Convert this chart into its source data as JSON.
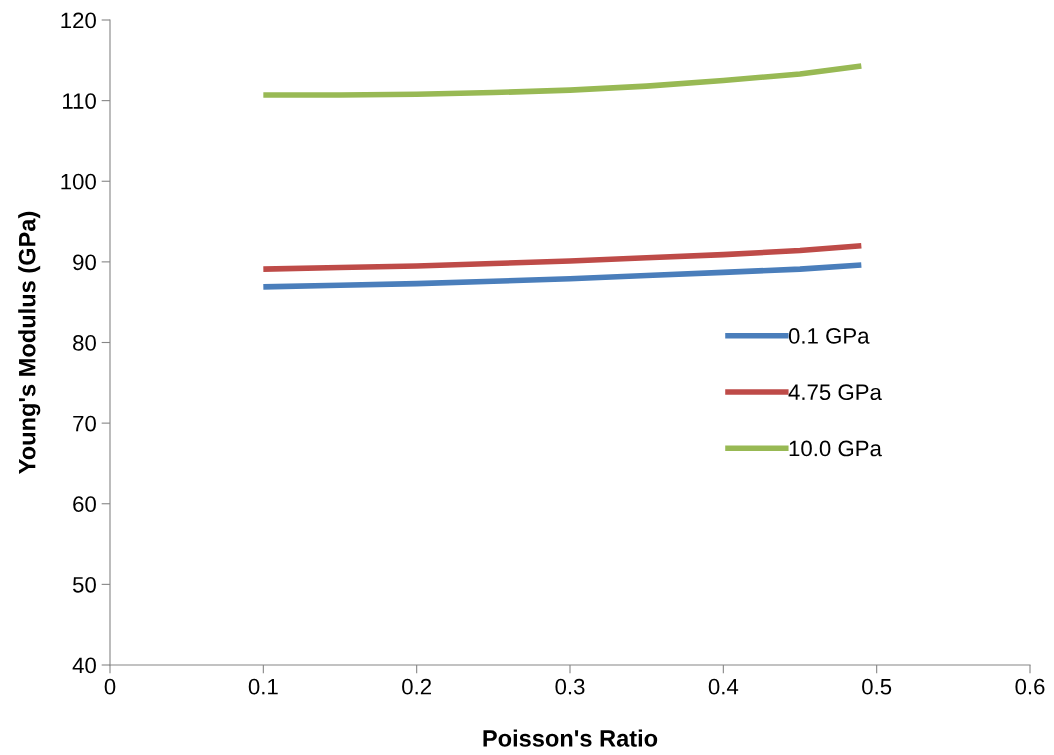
{
  "chart_data": {
    "type": "line",
    "xlabel": "Poisson's Ratio",
    "ylabel": "Young's Modulus (GPa)",
    "x": [
      0.1,
      0.15,
      0.2,
      0.25,
      0.3,
      0.35,
      0.4,
      0.45,
      0.49
    ],
    "series": [
      {
        "name": "0.1 GPa",
        "color": "#4a7ebb",
        "values": [
          86.9,
          87.1,
          87.3,
          87.6,
          87.9,
          88.3,
          88.7,
          89.1,
          89.6
        ]
      },
      {
        "name": "4.75 GPa",
        "color": "#be4b48",
        "values": [
          89.1,
          89.3,
          89.5,
          89.8,
          90.1,
          90.5,
          90.9,
          91.4,
          92.0
        ]
      },
      {
        "name": "10.0 GPa",
        "color": "#98b954",
        "values": [
          110.7,
          110.7,
          110.8,
          111.0,
          111.3,
          111.8,
          112.5,
          113.3,
          114.3
        ]
      }
    ],
    "xlim": [
      0,
      0.6
    ],
    "xticks": [
      0,
      0.1,
      0.2,
      0.3,
      0.4,
      0.5,
      0.6
    ],
    "ylim": [
      40,
      120
    ],
    "yticks": [
      40,
      50,
      60,
      70,
      80,
      90,
      100,
      110,
      120
    ],
    "grid": false,
    "legend": "right",
    "marker": "none",
    "line_style": "solid"
  }
}
